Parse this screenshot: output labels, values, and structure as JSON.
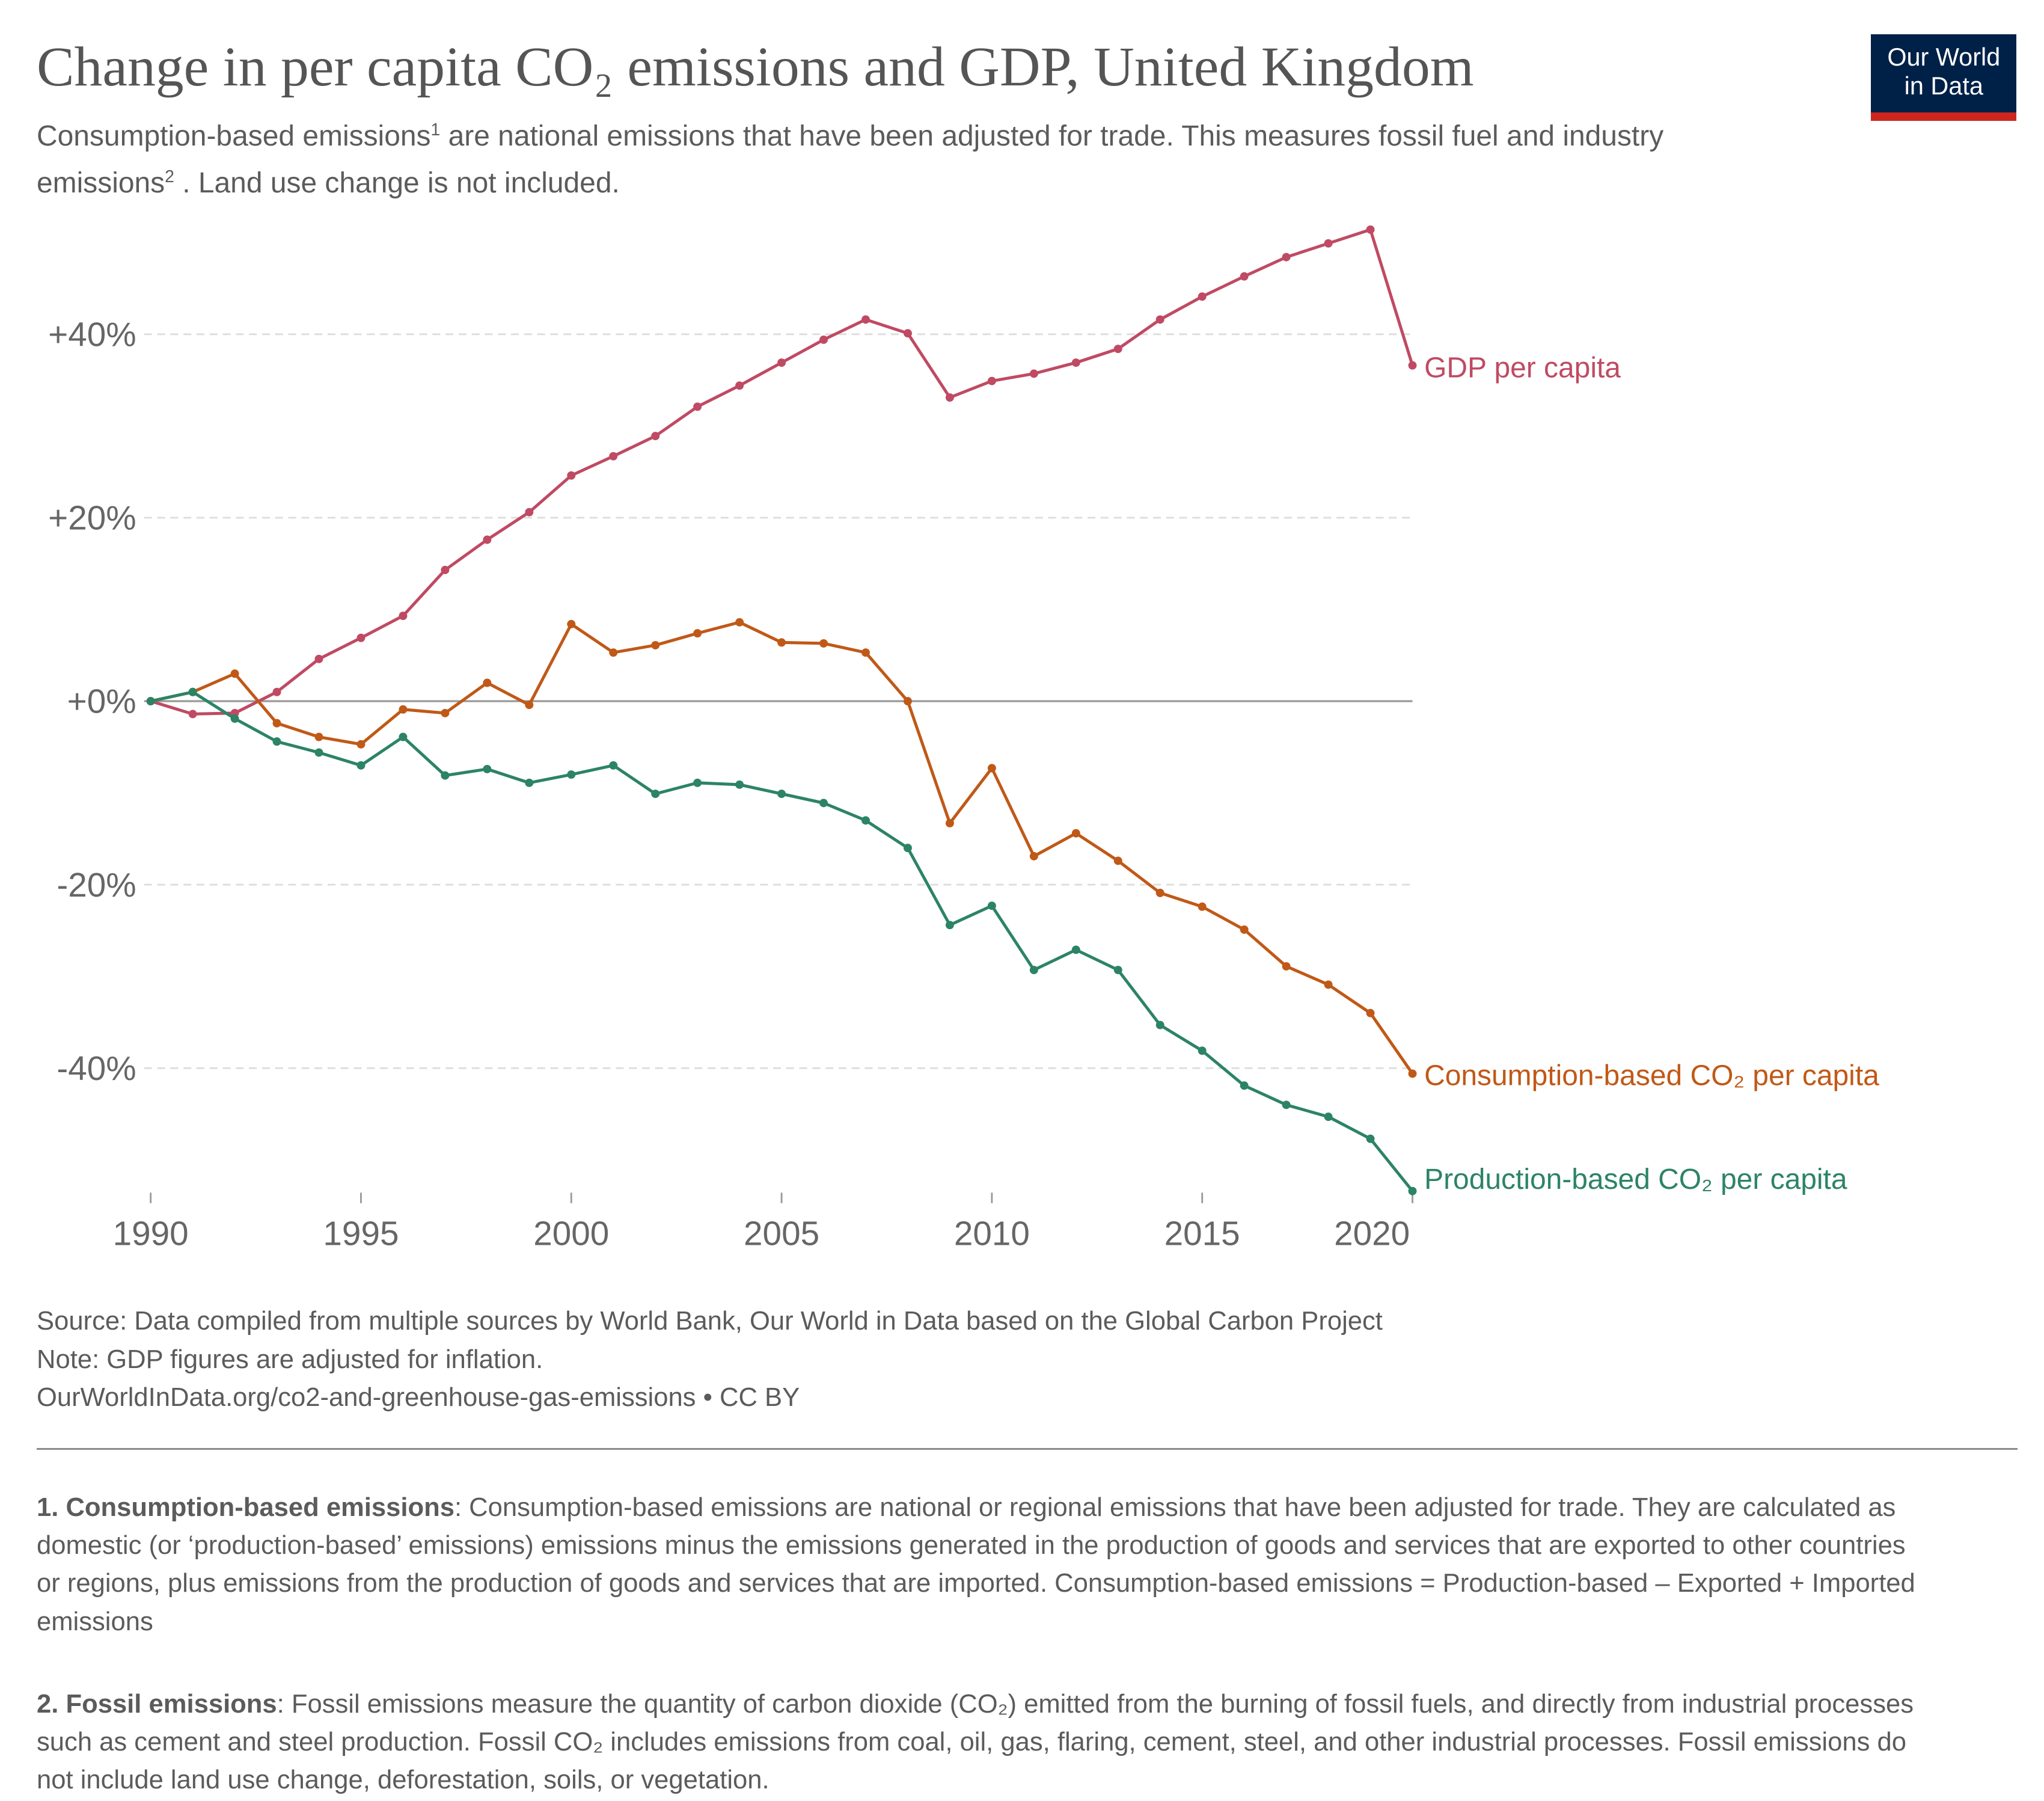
{
  "title": "Change in per capita CO₂ emissions and GDP, United Kingdom",
  "subtitle": {
    "part1": "Consumption-based emissions",
    "sup1": "1",
    "part2": " are national emissions that have been adjusted for trade. This measures fossil fuel and industry emissions",
    "sup2": "2",
    "part3": " . Land use change is not included."
  },
  "logo": {
    "line1": "Our World",
    "line2": "in Data",
    "bg_color": "#002147",
    "bar_color": "#ce261e"
  },
  "chart_data": {
    "type": "line",
    "x": [
      1990,
      1991,
      1992,
      1993,
      1994,
      1995,
      1996,
      1997,
      1998,
      1999,
      2000,
      2001,
      2002,
      2003,
      2004,
      2005,
      2006,
      2007,
      2008,
      2009,
      2010,
      2011,
      2012,
      2013,
      2014,
      2015,
      2016,
      2017,
      2018,
      2019,
      2020
    ],
    "series": [
      {
        "name": "GDP per capita",
        "color": "#c04a63",
        "values": [
          0,
          -1.4,
          -1.3,
          1.0,
          4.6,
          6.9,
          9.3,
          14.3,
          17.6,
          20.6,
          24.6,
          26.7,
          28.9,
          32.1,
          34.4,
          36.9,
          39.4,
          41.6,
          40.1,
          33.1,
          34.9,
          35.7,
          36.9,
          38.4,
          41.6,
          44.1,
          46.3,
          48.4,
          49.9,
          51.4,
          36.6
        ]
      },
      {
        "name": "Consumption-based CO₂ per capita",
        "color": "#c05917",
        "values": [
          0,
          1.0,
          3.0,
          -2.4,
          -3.9,
          -4.7,
          -0.9,
          -1.3,
          2.0,
          -0.4,
          8.4,
          5.3,
          6.1,
          7.4,
          8.6,
          6.4,
          6.3,
          5.3,
          0,
          -13.3,
          -7.3,
          -16.9,
          -14.4,
          -17.4,
          -20.9,
          -22.4,
          -24.9,
          -28.9,
          -30.9,
          -34.0,
          -40.6
        ]
      },
      {
        "name": "Production-based CO₂ per capita",
        "color": "#2c8465",
        "values": [
          0,
          1.0,
          -1.9,
          -4.4,
          -5.6,
          -7.0,
          -3.9,
          -8.1,
          -7.4,
          -8.9,
          -8.0,
          -7.0,
          -10.1,
          -8.9,
          -9.1,
          -10.1,
          -11.1,
          -13.0,
          -16.0,
          -24.4,
          -22.3,
          -29.3,
          -27.1,
          -29.3,
          -35.3,
          -38.1,
          -41.9,
          -44.0,
          -45.3,
          -47.7,
          -53.4
        ]
      }
    ],
    "xlim": [
      1990,
      2020
    ],
    "ylim": [
      -54,
      54
    ],
    "x_ticks": [
      1990,
      1995,
      2000,
      2005,
      2010,
      2015,
      2020
    ],
    "x_tick_labels": [
      "1990",
      "1995",
      "2000",
      "2005",
      "2010",
      "2015",
      "2020"
    ],
    "y_ticks": [
      -40,
      -20,
      0,
      20,
      40
    ],
    "y_tick_labels": [
      "-40%",
      "-20%",
      "+0%",
      "+20%",
      "+40%"
    ],
    "grid": "horizontal dashed",
    "legend": "line-end labels",
    "xlabel": "",
    "ylabel": ""
  },
  "footer": {
    "source": "Source: Data compiled from multiple sources by World Bank, Our World in Data based on the Global Carbon Project",
    "note": "Note: GDP figures are adjusted for inflation.",
    "url": "OurWorldInData.org/co2-and-greenhouse-gas-emissions",
    "sep": " • ",
    "license": "CC BY"
  },
  "notes": [
    {
      "head": "1. Consumption-based emissions",
      "text": ": Consumption-based emissions are national or regional emissions that have been adjusted for trade. They are calculated as domestic (or ‘production-based’ emissions) emissions minus the emissions generated in the production of goods and services that are exported to other countries or regions, plus emissions from the production of goods and services that are imported. Consumption-based emissions = Production-based – Exported + Imported emissions"
    },
    {
      "head": "2. Fossil emissions",
      "text": ": Fossil emissions measure the quantity of carbon dioxide (CO₂) emitted from the burning of fossil fuels, and directly from industrial processes such as cement and steel production. Fossil CO₂ includes emissions from coal, oil, gas, flaring, cement, steel, and other industrial processes. Fossil emissions do not include land use change, deforestation, soils, or vegetation."
    }
  ]
}
